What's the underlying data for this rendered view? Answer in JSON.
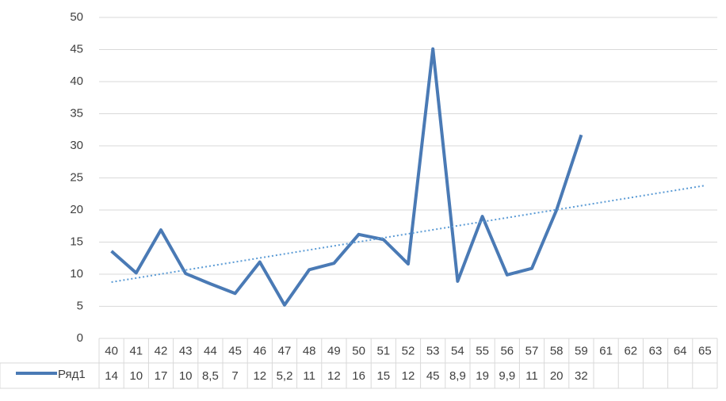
{
  "chart_data": {
    "type": "line",
    "categories": [
      "40",
      "41",
      "42",
      "43",
      "44",
      "45",
      "46",
      "47",
      "48",
      "49",
      "50",
      "51",
      "52",
      "53",
      "54",
      "55",
      "56",
      "57",
      "58",
      "59",
      "61",
      "62",
      "63",
      "64",
      "65"
    ],
    "series": [
      {
        "name": "Ряд1",
        "color": "#4a7ab5",
        "values": [
          13.6,
          10.2,
          16.9,
          10.1,
          8.5,
          7.0,
          11.9,
          5.2,
          10.7,
          11.7,
          16.2,
          15.4,
          11.6,
          45.1,
          8.9,
          19.0,
          9.9,
          10.9,
          20.0,
          31.7,
          null,
          null,
          null,
          null,
          null
        ],
        "value_labels": [
          "14",
          "10",
          "17",
          "10",
          "8,5",
          "7",
          "12",
          "5,2",
          "11",
          "12",
          "16",
          "15",
          "12",
          "45",
          "8,9",
          "19",
          "9,9",
          "11",
          "20",
          "32",
          null,
          null,
          null,
          null,
          null
        ]
      }
    ],
    "trendline": "linear",
    "trendline_color": "#5b9bd5",
    "ylim": [
      0,
      50
    ],
    "yticks": [
      0,
      5,
      10,
      15,
      20,
      25,
      30,
      35,
      40,
      45,
      50
    ],
    "grid": true
  }
}
